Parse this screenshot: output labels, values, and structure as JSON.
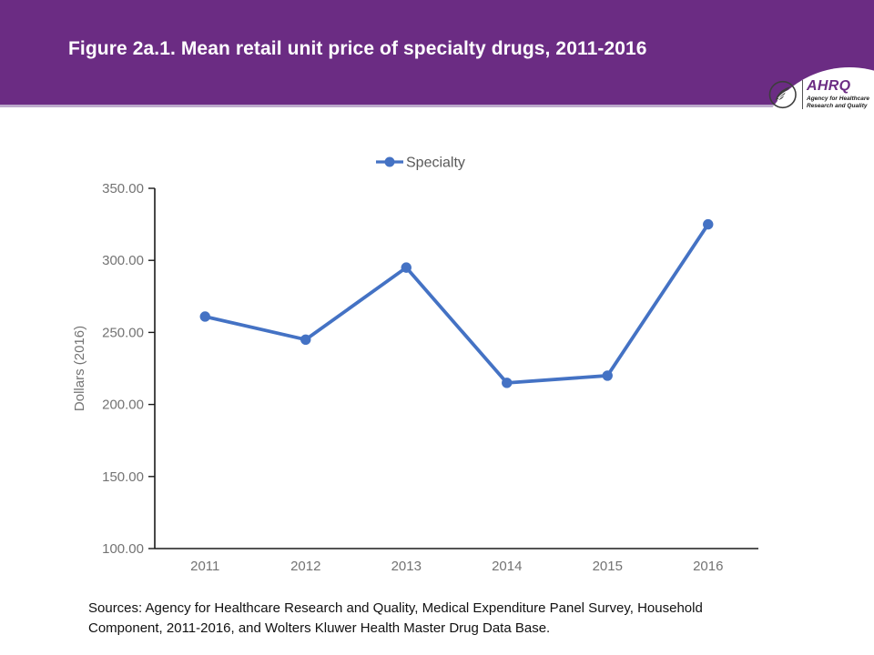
{
  "header": {
    "title": "Figure 2a.1. Mean retail unit price of specialty drugs, 2011-2016",
    "colors": {
      "background": "#6B2C83",
      "bottom_border": "#BCAACB"
    },
    "logo": {
      "eagle_icon": "hhs-eagle",
      "acronym": "AHRQ",
      "tagline_line1": "Agency for Healthcare",
      "tagline_line2": "Research and Quality"
    }
  },
  "chart_data": {
    "type": "line",
    "title": "",
    "categories": [
      "2011",
      "2012",
      "2013",
      "2014",
      "2015",
      "2016"
    ],
    "series": [
      {
        "name": "Specialty",
        "values": [
          261,
          245,
          295,
          215,
          220,
          325
        ],
        "color": "#4472C4"
      }
    ],
    "xlabel": "",
    "ylabel": "Dollars (2016)",
    "ylim": [
      100,
      350
    ],
    "ytick_step": 50,
    "ytick_decimals": 2,
    "grid": false,
    "legend_position": "top",
    "colors": {
      "axis": "#1a1a1a",
      "tick_labels": "#737373",
      "legend_text": "#595959"
    }
  },
  "footer": {
    "sources": "Sources: Agency for Healthcare Research and Quality, Medical Expenditure Panel Survey, Household Component, 2011-2016, and Wolters Kluwer Health Master Drug Data Base."
  }
}
